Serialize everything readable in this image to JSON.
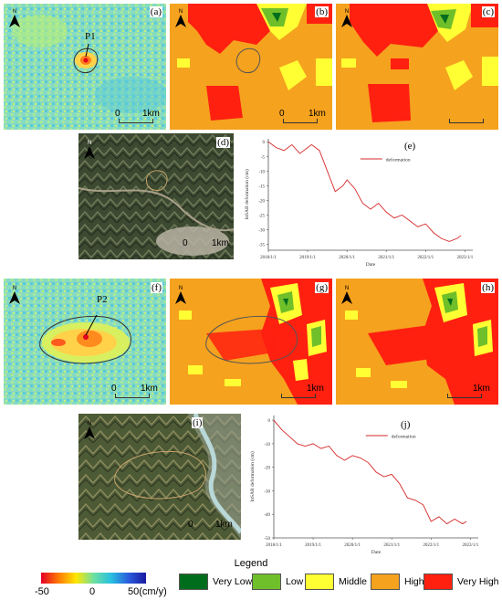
{
  "panels": {
    "a": {
      "label": "(a)",
      "point": "P1",
      "scale": {
        "start": "0",
        "end": "1km"
      }
    },
    "b": {
      "label": "(b)",
      "scale": {
        "start": "0",
        "end": "1km"
      }
    },
    "c": {
      "label": "(c)"
    },
    "d": {
      "label": "(d)",
      "scale": {
        "start": "0",
        "end": "1km"
      }
    },
    "e": {
      "label": "(e)"
    },
    "f": {
      "label": "(f)",
      "point": "P2",
      "scale": {
        "start": "0",
        "end": "1km"
      }
    },
    "g": {
      "label": "(g)",
      "scale": {
        "end": "1km"
      }
    },
    "h": {
      "label": "(h)",
      "scale": {
        "end": "1km"
      }
    },
    "i": {
      "label": "(i)",
      "scale": {
        "start": "0",
        "end": "1km"
      }
    },
    "j": {
      "label": "(j)"
    }
  },
  "north_label": "N",
  "chart_data": [
    {
      "type": "line",
      "panel": "(e)",
      "xlabel": "Date",
      "ylabel": "InSAR deformation (cm)",
      "xticks": [
        "2018/1/1",
        "2019/1/1",
        "2020/1/1",
        "2021/1/1",
        "2022/1/1",
        "2023/1/1"
      ],
      "yticks": [
        0,
        -5,
        -10,
        -15,
        -20,
        -25,
        -30,
        -35
      ],
      "ylim": [
        -37,
        1
      ],
      "series": [
        {
          "name": "deformation",
          "color": "#d62728",
          "x": [
            2018.0,
            2018.2,
            2018.4,
            2018.6,
            2018.8,
            2019.0,
            2019.1,
            2019.3,
            2019.5,
            2019.7,
            2019.9,
            2020.0,
            2020.2,
            2020.4,
            2020.6,
            2020.8,
            2021.0,
            2021.2,
            2021.4,
            2021.6,
            2021.8,
            2022.0,
            2022.2,
            2022.4,
            2022.6,
            2022.8,
            2022.9
          ],
          "y": [
            0,
            -2,
            -3,
            -1,
            -4,
            -2,
            -1,
            -3,
            -10,
            -17,
            -15,
            -13,
            -16,
            -21,
            -23,
            -21,
            -24,
            -26,
            -25,
            -27,
            -29,
            -28,
            -31,
            -33,
            -34,
            -33,
            -32
          ]
        }
      ]
    },
    {
      "type": "line",
      "panel": "(j)",
      "xlabel": "Date",
      "ylabel": "InSAR deformation (cm)",
      "xticks": [
        "2018/1/1",
        "2019/1/1",
        "2020/1/1",
        "2021/1/1",
        "2022/1/1",
        "2023/1/1"
      ],
      "yticks": [
        0,
        -10,
        -20,
        -30,
        -40,
        -50
      ],
      "ylim": [
        -50,
        2
      ],
      "series": [
        {
          "name": "deformation",
          "color": "#d62728",
          "x": [
            2018.0,
            2018.2,
            2018.4,
            2018.6,
            2018.8,
            2019.0,
            2019.2,
            2019.4,
            2019.6,
            2019.8,
            2020.0,
            2020.2,
            2020.4,
            2020.6,
            2020.8,
            2021.0,
            2021.2,
            2021.4,
            2021.6,
            2021.8,
            2022.0,
            2022.2,
            2022.4,
            2022.6,
            2022.8,
            2022.9
          ],
          "y": [
            0,
            -4,
            -7,
            -10,
            -11,
            -10,
            -12,
            -11,
            -15,
            -17,
            -15,
            -16,
            -18,
            -22,
            -24,
            -23,
            -27,
            -33,
            -34,
            -36,
            -43,
            -41,
            -44,
            -42,
            -44,
            -43
          ]
        }
      ]
    }
  ],
  "legend": {
    "title": "Legend",
    "colorbar": {
      "min": "-50",
      "mid": "0",
      "max": "50(cm/y)",
      "colors": [
        "#e4002b",
        "#ff7a00",
        "#ffe600",
        "#6fe0a0",
        "#27c0e0",
        "#2a5cdc",
        "#1a1aa0"
      ]
    },
    "classes": [
      {
        "label": "Very Low",
        "color": "#006d1c"
      },
      {
        "label": "Low",
        "color": "#6fbf2a"
      },
      {
        "label": "Middle",
        "color": "#ffff33"
      },
      {
        "label": "High",
        "color": "#f5a21e"
      },
      {
        "label": "Very High",
        "color": "#ff2010"
      }
    ]
  }
}
